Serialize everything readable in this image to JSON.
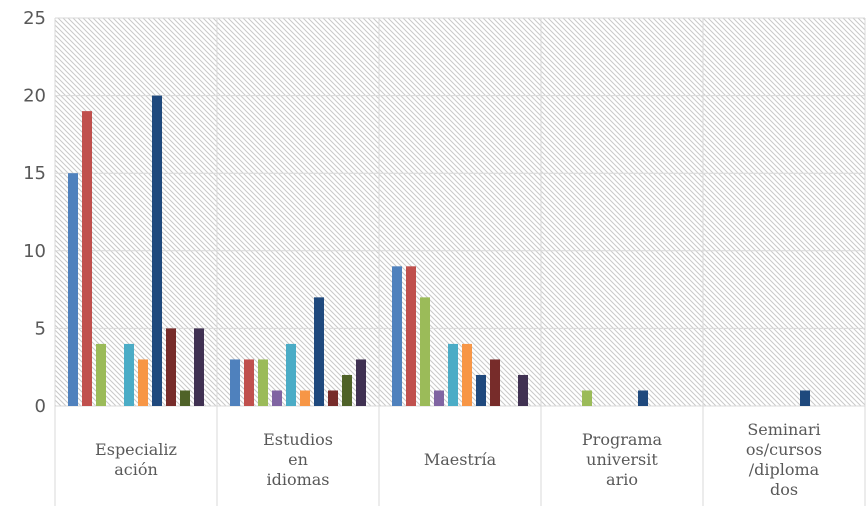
{
  "chart_data": {
    "type": "bar",
    "title": "",
    "xlabel": "",
    "ylabel": "",
    "ylim": [
      0,
      25
    ],
    "yticks": [
      0,
      5,
      10,
      15,
      20,
      25
    ],
    "grid": true,
    "legend": "none",
    "categories": [
      [
        "Especializ",
        "ación"
      ],
      [
        "Estudios",
        "en",
        "idiomas"
      ],
      [
        "Maestría"
      ],
      [
        "Programa",
        "universit",
        "ario"
      ],
      [
        "Seminari",
        "os/cursos",
        "/diploma",
        "dos"
      ]
    ],
    "series": [
      {
        "color": "#4F81BD",
        "values": [
          15,
          3,
          9,
          0,
          0
        ]
      },
      {
        "color": "#C0504D",
        "values": [
          19,
          3,
          9,
          0,
          0
        ]
      },
      {
        "color": "#9BBB59",
        "values": [
          4,
          3,
          7,
          1,
          0
        ]
      },
      {
        "color": "#8064A2",
        "values": [
          0,
          1,
          1,
          0,
          0
        ]
      },
      {
        "color": "#4BACC6",
        "values": [
          4,
          4,
          4,
          0,
          0
        ]
      },
      {
        "color": "#F79646",
        "values": [
          3,
          1,
          4,
          0,
          0
        ]
      },
      {
        "color": "#1F497D",
        "values": [
          20,
          7,
          2,
          1,
          1
        ]
      },
      {
        "color": "#772C2A",
        "values": [
          5,
          1,
          3,
          0,
          0
        ]
      },
      {
        "color": "#4F6228",
        "values": [
          1,
          2,
          0,
          0,
          0
        ]
      },
      {
        "color": "#403152",
        "values": [
          5,
          3,
          2,
          0,
          0
        ]
      }
    ]
  }
}
